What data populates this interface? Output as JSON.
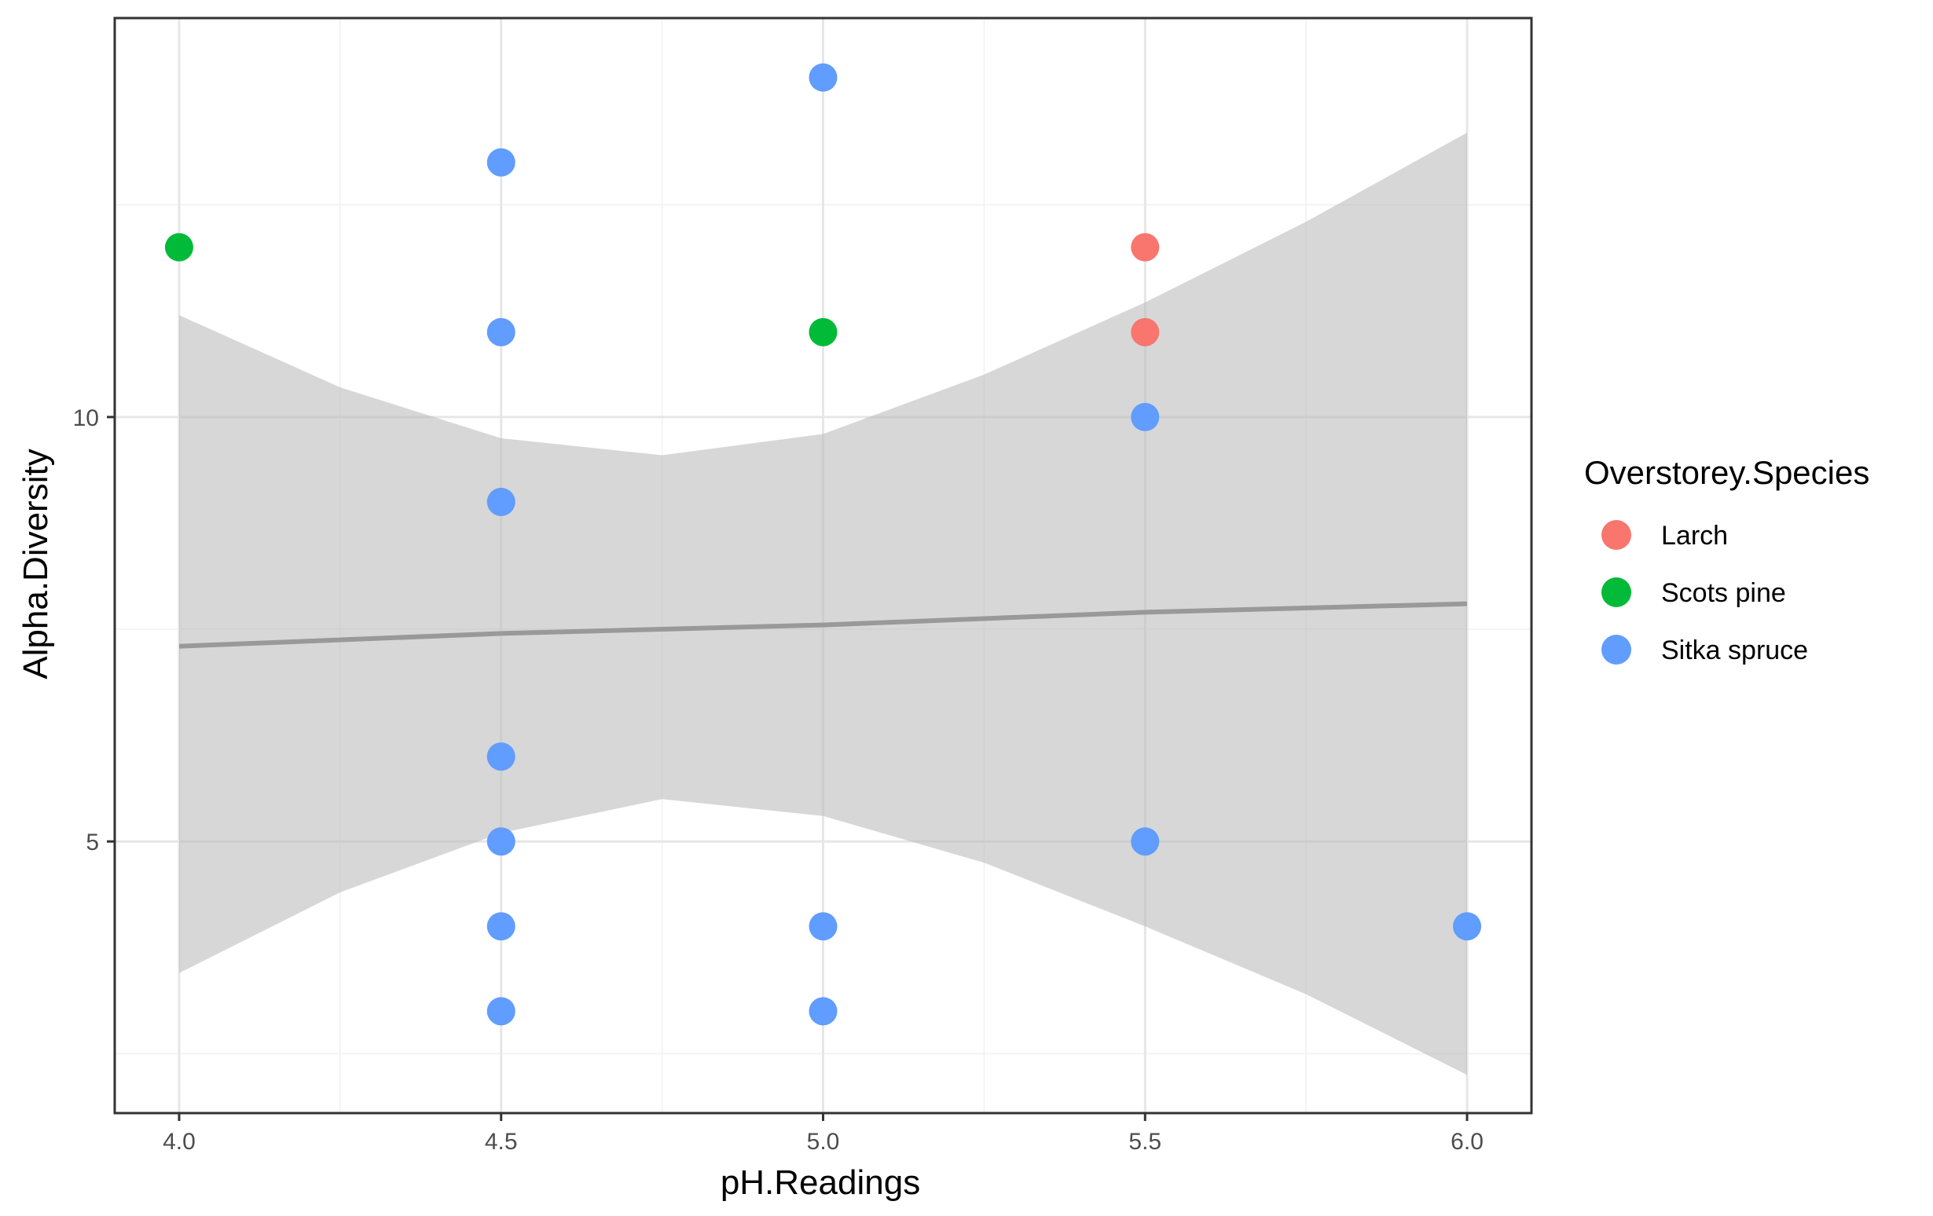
{
  "chart_data": {
    "type": "scatter",
    "xlabel": "pH.Readings",
    "ylabel": "Alpha.Diversity",
    "xlim": [
      3.9,
      6.1
    ],
    "ylim": [
      1.8,
      14.7
    ],
    "x_ticks": [
      4.0,
      4.5,
      5.0,
      5.5,
      6.0
    ],
    "x_tick_labels": [
      "4.0",
      "4.5",
      "5.0",
      "5.5",
      "6.0"
    ],
    "y_ticks": [
      5,
      10
    ],
    "y_tick_labels": [
      "5",
      "10"
    ],
    "x_minor_ticks": [
      4.25,
      4.75,
      5.25,
      5.75
    ],
    "y_minor_ticks": [
      2.5,
      7.5,
      12.5
    ],
    "grid": true,
    "legend": {
      "title": "Overstorey.Species",
      "placement": "right",
      "entries": [
        {
          "name": "Larch",
          "color": "#F8766D"
        },
        {
          "name": "Scots pine",
          "color": "#00BA38"
        },
        {
          "name": "Sitka spruce",
          "color": "#619CFF"
        }
      ]
    },
    "series": [
      {
        "name": "Larch",
        "color": "#F8766D",
        "points": [
          [
            5.5,
            12
          ],
          [
            5.5,
            11
          ]
        ]
      },
      {
        "name": "Scots pine",
        "color": "#00BA38",
        "points": [
          [
            4.0,
            12
          ],
          [
            5.0,
            11
          ]
        ]
      },
      {
        "name": "Sitka spruce",
        "color": "#619CFF",
        "points": [
          [
            5.0,
            14
          ],
          [
            4.5,
            13
          ],
          [
            4.5,
            11
          ],
          [
            5.5,
            10
          ],
          [
            4.5,
            9
          ],
          [
            4.5,
            6
          ],
          [
            4.5,
            5
          ],
          [
            5.5,
            5
          ],
          [
            4.5,
            4
          ],
          [
            5.0,
            4
          ],
          [
            6.0,
            4
          ],
          [
            4.5,
            3
          ],
          [
            5.0,
            3
          ]
        ]
      }
    ],
    "trend_line": {
      "method": "lm",
      "color": "#999999",
      "points": [
        [
          4.0,
          7.3
        ],
        [
          4.5,
          7.45
        ],
        [
          4.75,
          7.5
        ],
        [
          5.0,
          7.55
        ],
        [
          5.5,
          7.7
        ],
        [
          6.0,
          7.8
        ]
      ]
    },
    "confidence_band": {
      "color": "#bdbdbd",
      "upper": [
        [
          4.0,
          11.2
        ],
        [
          4.25,
          10.35
        ],
        [
          4.5,
          9.75
        ],
        [
          4.75,
          9.55
        ],
        [
          5.0,
          9.8
        ],
        [
          5.25,
          10.5
        ],
        [
          5.5,
          11.35
        ],
        [
          5.75,
          12.3
        ],
        [
          6.0,
          13.35
        ]
      ],
      "lower": [
        [
          4.0,
          3.45
        ],
        [
          4.25,
          4.4
        ],
        [
          4.5,
          5.1
        ],
        [
          4.75,
          5.5
        ],
        [
          5.0,
          5.3
        ],
        [
          5.25,
          4.75
        ],
        [
          5.5,
          4.0
        ],
        [
          5.75,
          3.2
        ],
        [
          6.0,
          2.25
        ]
      ]
    }
  }
}
